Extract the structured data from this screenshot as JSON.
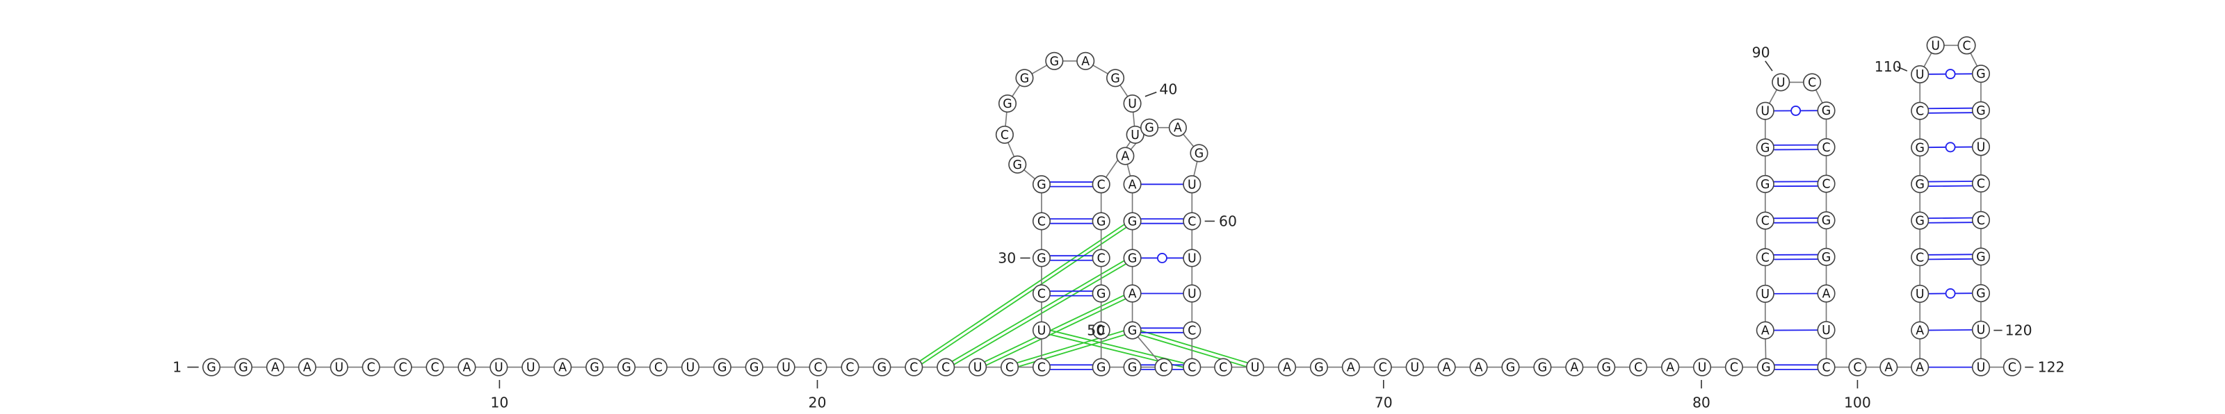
{
  "sequence": [
    "G",
    "G",
    "A",
    "A",
    "U",
    "C",
    "C",
    "C",
    "A",
    "U",
    "U",
    "A",
    "G",
    "G",
    "C",
    "U",
    "G",
    "G",
    "U",
    "C",
    "C",
    "G",
    "C",
    "C",
    "U",
    "C",
    "C",
    "U",
    "C",
    "G",
    "C",
    "G",
    "G",
    "C",
    "G",
    "G",
    "G",
    "A",
    "G",
    "U",
    "U",
    "C",
    "G",
    "C",
    "G",
    "C",
    "G",
    "G",
    "C",
    "G",
    "A",
    "G",
    "G",
    "A",
    "A",
    "G",
    "A",
    "G",
    "U",
    "C",
    "U",
    "U",
    "C",
    "C",
    "C",
    "U",
    "A",
    "G",
    "A",
    "C",
    "U",
    "A",
    "A",
    "G",
    "G",
    "A",
    "G",
    "C",
    "A",
    "U",
    "C",
    "G",
    "A",
    "U",
    "C",
    "C",
    "G",
    "G",
    "U",
    "U",
    "C",
    "G",
    "C",
    "C",
    "G",
    "G",
    "A",
    "U",
    "C",
    "C",
    "A",
    "A",
    "A",
    "U",
    "C",
    "G",
    "G",
    "G",
    "C",
    "U",
    "U",
    "C",
    "G",
    "G",
    "U",
    "C",
    "C",
    "G",
    "G",
    "U",
    "U",
    "C"
  ],
  "labels": [
    1,
    10,
    20,
    30,
    40,
    50,
    60,
    70,
    80,
    90,
    100,
    110,
    120,
    122
  ]
}
